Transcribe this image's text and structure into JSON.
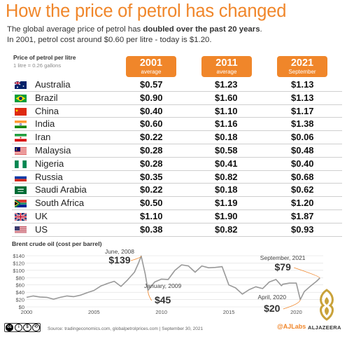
{
  "header": {
    "title": "How the price of petrol has changed",
    "subtitle_pre": "The global average price of petrol has ",
    "subtitle_bold": "doubled over the past 20 years",
    "subtitle_post": ".",
    "subtitle2": "In 2001, petrol cost around $0.60 per litre - today is $1.20."
  },
  "table": {
    "label": "Price of petrol per litre",
    "note": "1 litre = 0.26 gallons",
    "columns": [
      {
        "year": "2001",
        "sub": "average"
      },
      {
        "year": "2011",
        "sub": "average"
      },
      {
        "year": "2021",
        "sub": "September"
      }
    ],
    "rows": [
      {
        "country": "Australia",
        "flag": "australia-flag",
        "v": [
          "$0.57",
          "$1.23",
          "$1.13"
        ]
      },
      {
        "country": "Brazil",
        "flag": "brazil-flag",
        "v": [
          "$0.90",
          "$1.60",
          "$1.13"
        ]
      },
      {
        "country": "China",
        "flag": "china-flag",
        "v": [
          "$0.40",
          "$1.10",
          "$1.17"
        ]
      },
      {
        "country": "India",
        "flag": "india-flag",
        "v": [
          "$0.60",
          "$1.16",
          "$1.38"
        ]
      },
      {
        "country": "Iran",
        "flag": "iran-flag",
        "v": [
          "$0.22",
          "$0.18",
          "$0.06"
        ]
      },
      {
        "country": "Malaysia",
        "flag": "malaysia-flag",
        "v": [
          "$0.28",
          "$0.58",
          "$0.48"
        ]
      },
      {
        "country": "Nigeria",
        "flag": "nigeria-flag",
        "v": [
          "$0.28",
          "$0.41",
          "$0.40"
        ]
      },
      {
        "country": "Russia",
        "flag": "russia-flag",
        "v": [
          "$0.35",
          "$0.82",
          "$0.68"
        ]
      },
      {
        "country": "Saudi Arabia",
        "flag": "saudi-arabia-flag",
        "v": [
          "$0.22",
          "$0.18",
          "$0.62"
        ]
      },
      {
        "country": "South Africa",
        "flag": "south-africa-flag",
        "v": [
          "$0.50",
          "$1.19",
          "$1.20"
        ]
      },
      {
        "country": "UK",
        "flag": "uk-flag",
        "v": [
          "$1.10",
          "$1.90",
          "$1.87"
        ]
      },
      {
        "country": "US",
        "flag": "us-flag",
        "v": [
          "$0.38",
          "$0.82",
          "$0.93"
        ]
      }
    ]
  },
  "chart_data": {
    "type": "line",
    "title": "Brent crude oil (cost per barrel)",
    "xlabel": "",
    "ylabel": "",
    "ylim": [
      0,
      140
    ],
    "xlim": [
      2000,
      2022
    ],
    "yticks": [
      "$0",
      "$20",
      "$40",
      "$60",
      "$80",
      "$100",
      "$120",
      "$140"
    ],
    "xticks": [
      "2000",
      "2005",
      "2010",
      "2015",
      "2020"
    ],
    "grid": true,
    "x": [
      2000.0,
      2000.5,
      2001.0,
      2001.5,
      2002.0,
      2002.5,
      2003.0,
      2003.5,
      2004.0,
      2004.5,
      2005.0,
      2005.5,
      2006.0,
      2006.5,
      2007.0,
      2007.5,
      2008.0,
      2008.3,
      2008.5,
      2008.8,
      2009.0,
      2009.5,
      2010.0,
      2010.5,
      2011.0,
      2011.5,
      2012.0,
      2012.5,
      2013.0,
      2013.5,
      2014.0,
      2014.5,
      2015.0,
      2015.5,
      2016.0,
      2016.5,
      2017.0,
      2017.5,
      2018.0,
      2018.5,
      2018.9,
      2019.0,
      2019.5,
      2020.0,
      2020.3,
      2020.6,
      2021.0,
      2021.5,
      2021.75
    ],
    "values": [
      26,
      30,
      27,
      26,
      21,
      26,
      30,
      28,
      32,
      39,
      45,
      57,
      64,
      70,
      56,
      74,
      95,
      120,
      139,
      90,
      45,
      68,
      76,
      75,
      100,
      115,
      112,
      95,
      112,
      107,
      108,
      110,
      60,
      52,
      35,
      47,
      55,
      50,
      68,
      75,
      58,
      62,
      65,
      65,
      20,
      42,
      55,
      70,
      79
    ],
    "annotations": [
      {
        "label": "June, 2008",
        "value": "$139"
      },
      {
        "label": "January, 2009",
        "value": "$45"
      },
      {
        "label": "April, 2020",
        "value": "$20"
      },
      {
        "label": "September, 2021",
        "value": "$79"
      }
    ]
  },
  "footer": {
    "source": "Source: tradingeconomics.com, globalpetrolprices.com | September 30, 2021",
    "license": "BY NC SA",
    "credit": "@AJLabs",
    "brand": "ALJAZEERA"
  },
  "colors": {
    "accent": "#f0862a",
    "line": "#999999"
  }
}
